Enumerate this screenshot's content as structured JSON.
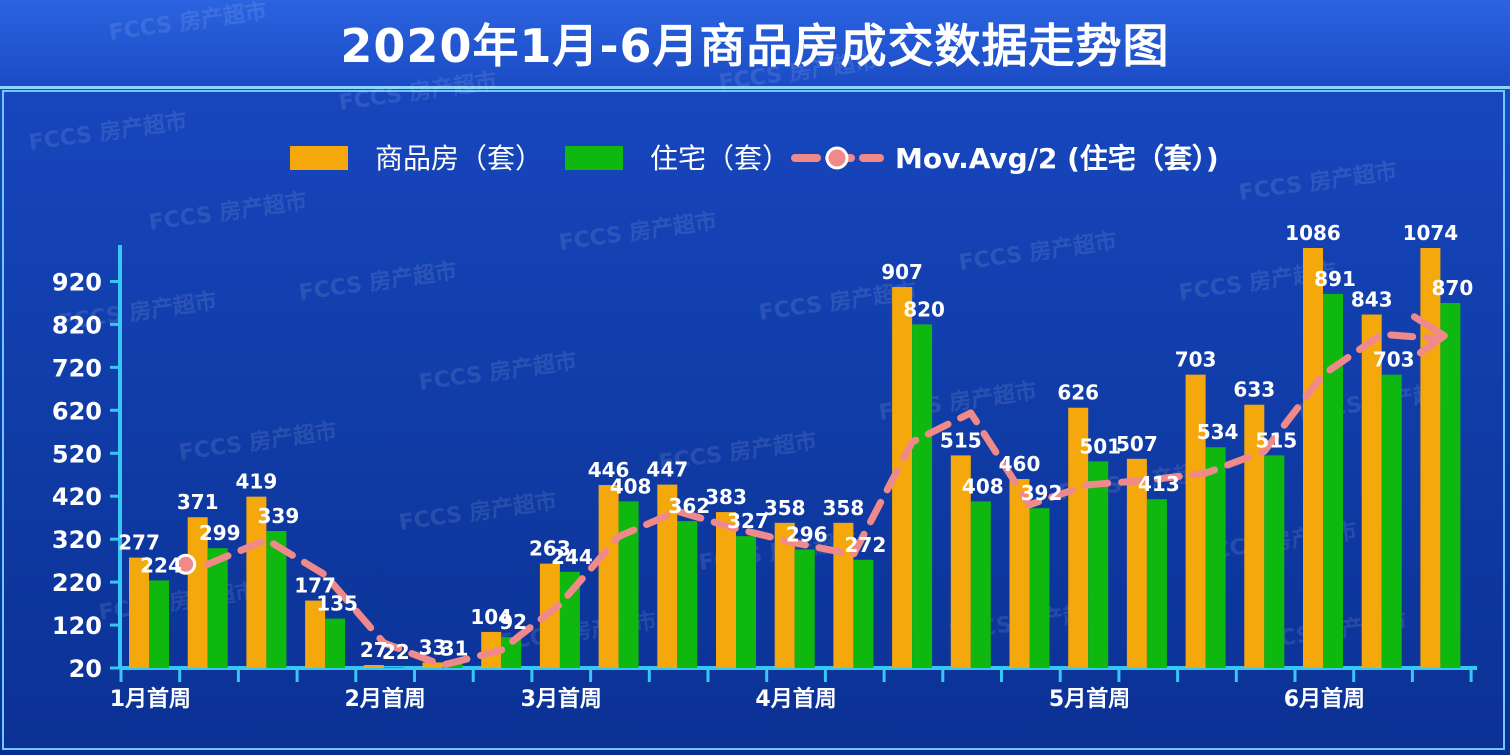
{
  "title": "2020年1月-6月商品房成交数据走势图",
  "colors": {
    "commercial": "#f5a80c",
    "residential": "#0fb80f",
    "moving_avg": "#f08a8a",
    "axis": "#38c6f5",
    "text": "#ffffff"
  },
  "legend": {
    "commercial": "商品房（套）",
    "residential": "住宅（套）",
    "moving_avg": "Mov.Avg/2 (住宅（套）)"
  },
  "watermark": "FCCS 房产超市",
  "chart_data": {
    "type": "bar",
    "title": "2020年1月-6月商品房成交数据走势图",
    "xlabel": "",
    "ylabel": "",
    "ylim": [
      20,
      1040
    ],
    "yticks": [
      20,
      120,
      220,
      320,
      420,
      520,
      620,
      720,
      820,
      920
    ],
    "grid": false,
    "legend_position": "top",
    "n_weeks": 23,
    "category_labels": [
      {
        "week": 0,
        "label": "1月首周"
      },
      {
        "week": 4,
        "label": "2月首周"
      },
      {
        "week": 7,
        "label": "3月首周"
      },
      {
        "week": 11,
        "label": "4月首周"
      },
      {
        "week": 16,
        "label": "5月首周"
      },
      {
        "week": 20,
        "label": "6月首周"
      }
    ],
    "series": [
      {
        "name": "商品房（套）",
        "values": [
          277,
          371,
          419,
          177,
          27,
          33,
          104,
          263,
          446,
          447,
          383,
          358,
          358,
          907,
          515,
          460,
          626,
          507,
          703,
          633,
          1086,
          843,
          1074
        ]
      },
      {
        "name": "住宅（套）",
        "values": [
          224,
          299,
          339,
          135,
          22,
          31,
          92,
          244,
          408,
          362,
          327,
          296,
          272,
          820,
          408,
          392,
          501,
          413,
          534,
          515,
          891,
          703,
          870
        ]
      }
    ],
    "moving_average": {
      "name": "Mov.Avg/2 (住宅（套）)",
      "values": [
        null,
        261.5,
        319,
        237,
        78.5,
        26.5,
        61.5,
        168,
        326,
        385,
        344.5,
        311.5,
        284,
        546,
        614,
        400,
        446.5,
        457,
        473.5,
        524.5,
        703,
        797,
        786.5
      ]
    }
  }
}
